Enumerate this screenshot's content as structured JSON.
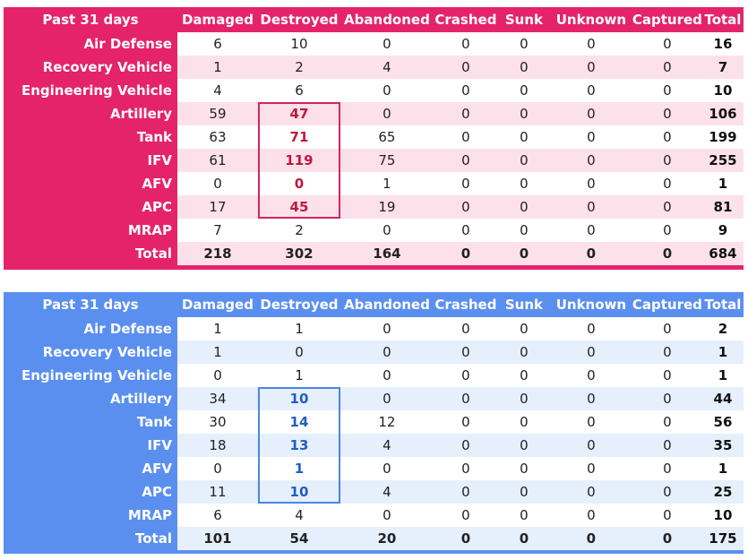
{
  "chart_data": [
    {
      "type": "table",
      "corner_label": "Past 31 days",
      "columns": [
        "Damaged",
        "Destroyed",
        "Abandoned",
        "Crashed",
        "Sunk",
        "Unknown",
        "Captured",
        "Total"
      ],
      "rows": [
        {
          "label": "Air Defense",
          "values": [
            "6",
            "10",
            "0",
            "0",
            "0",
            "0",
            "0",
            "16"
          ]
        },
        {
          "label": "Recovery Vehicle",
          "values": [
            "1",
            "2",
            "4",
            "0",
            "0",
            "0",
            "0",
            "7"
          ]
        },
        {
          "label": "Engineering Vehicle",
          "values": [
            "4",
            "6",
            "0",
            "0",
            "0",
            "0",
            "0",
            "10"
          ]
        },
        {
          "label": "Artillery",
          "values": [
            "59",
            "47",
            "0",
            "0",
            "0",
            "0",
            "0",
            "106"
          ]
        },
        {
          "label": "Tank",
          "values": [
            "63",
            "71",
            "65",
            "0",
            "0",
            "0",
            "0",
            "199"
          ]
        },
        {
          "label": "IFV",
          "values": [
            "61",
            "119",
            "75",
            "0",
            "0",
            "0",
            "0",
            "255"
          ]
        },
        {
          "label": "AFV",
          "values": [
            "0",
            "0",
            "1",
            "0",
            "0",
            "0",
            "0",
            "1"
          ]
        },
        {
          "label": "APC",
          "values": [
            "17",
            "45",
            "19",
            "0",
            "0",
            "0",
            "0",
            "81"
          ]
        },
        {
          "label": "MRAP",
          "values": [
            "7",
            "2",
            "0",
            "0",
            "0",
            "0",
            "0",
            "9"
          ]
        },
        {
          "label": "Total",
          "values": [
            "218",
            "302",
            "164",
            "0",
            "0",
            "0",
            "0",
            "684"
          ]
        }
      ],
      "highlight": {
        "column": "Destroyed",
        "rows": [
          "Artillery",
          "Tank",
          "IFV",
          "AFV",
          "APC"
        ]
      },
      "header_color": "#e5236a",
      "stripe_color": "#fde1ea",
      "highlight_color": "#c0183f"
    },
    {
      "type": "table",
      "corner_label": "Past 31 days",
      "columns": [
        "Damaged",
        "Destroyed",
        "Abandoned",
        "Crashed",
        "Sunk",
        "Unknown",
        "Captured",
        "Total"
      ],
      "rows": [
        {
          "label": "Air Defense",
          "values": [
            "1",
            "1",
            "0",
            "0",
            "0",
            "0",
            "0",
            "2"
          ]
        },
        {
          "label": "Recovery Vehicle",
          "values": [
            "1",
            "0",
            "0",
            "0",
            "0",
            "0",
            "0",
            "1"
          ]
        },
        {
          "label": "Engineering Vehicle",
          "values": [
            "0",
            "1",
            "0",
            "0",
            "0",
            "0",
            "0",
            "1"
          ]
        },
        {
          "label": "Artillery",
          "values": [
            "34",
            "10",
            "0",
            "0",
            "0",
            "0",
            "0",
            "44"
          ]
        },
        {
          "label": "Tank",
          "values": [
            "30",
            "14",
            "12",
            "0",
            "0",
            "0",
            "0",
            "56"
          ]
        },
        {
          "label": "IFV",
          "values": [
            "18",
            "13",
            "4",
            "0",
            "0",
            "0",
            "0",
            "35"
          ]
        },
        {
          "label": "AFV",
          "values": [
            "0",
            "1",
            "0",
            "0",
            "0",
            "0",
            "0",
            "1"
          ]
        },
        {
          "label": "APC",
          "values": [
            "11",
            "10",
            "4",
            "0",
            "0",
            "0",
            "0",
            "25"
          ]
        },
        {
          "label": "MRAP",
          "values": [
            "6",
            "4",
            "0",
            "0",
            "0",
            "0",
            "0",
            "10"
          ]
        },
        {
          "label": "Total",
          "values": [
            "101",
            "54",
            "20",
            "0",
            "0",
            "0",
            "0",
            "175"
          ]
        }
      ],
      "highlight": {
        "column": "Destroyed",
        "rows": [
          "Artillery",
          "Tank",
          "IFV",
          "AFV",
          "APC"
        ]
      },
      "header_color": "#5a8ff0",
      "stripe_color": "#e6effc",
      "highlight_color": "#1f5fbf"
    }
  ]
}
